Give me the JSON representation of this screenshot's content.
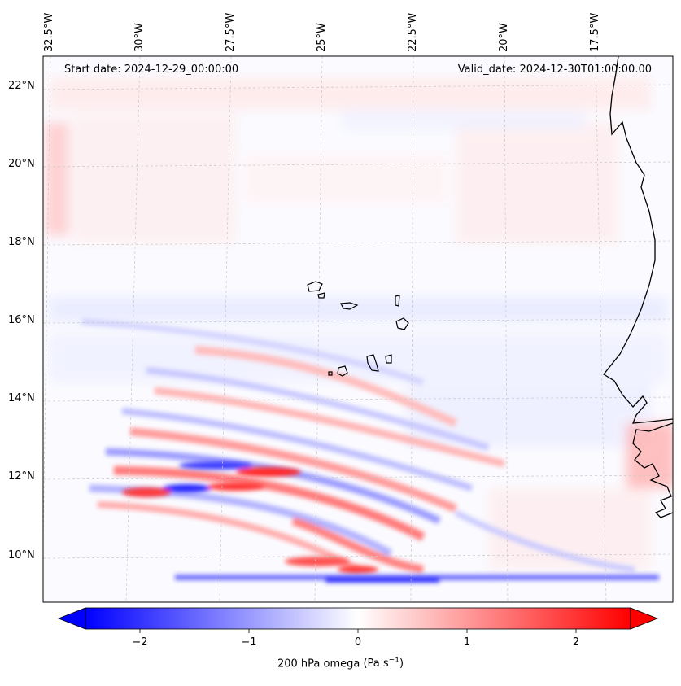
{
  "map": {
    "start_date": "Start date: 2024-12-29_00:00:00",
    "valid_date": "Valid_date: 2024-12-30T01:00:00.00",
    "lat_labels": [
      "22°N",
      "20°N",
      "18°N",
      "16°N",
      "14°N",
      "12°N",
      "10°N"
    ],
    "lon_labels": [
      "32.5°W",
      "30°W",
      "27.5°W",
      "25°W",
      "22.5°W",
      "20°W",
      "17.5°W"
    ],
    "variable": "200 hPa omega",
    "units_prefix": "(Pa s",
    "units_exp": "−1",
    "units_suffix": ")",
    "lat_range": [
      8.8,
      22.8
    ],
    "lon_range": [
      -33.1,
      -15.5
    ]
  },
  "colorbar": {
    "ticks": [
      -2,
      -1,
      0,
      1,
      2
    ],
    "tick_labels": [
      "−2",
      "−1",
      "0",
      "1",
      "2"
    ],
    "range": [
      -2.5,
      2.5
    ],
    "extend": "both",
    "cmap": "bwr",
    "low_color": "#0000ff",
    "mid_color": "#ffffff",
    "high_color": "#ff0000"
  },
  "features": {
    "islands": [
      "Santo Antão",
      "São Vicente",
      "São Nicolau",
      "Sal",
      "Boa Vista",
      "Maio",
      "Santiago",
      "Fogo",
      "Brava"
    ],
    "coastline": "West Africa (Western Sahara, Mauritania, Senegal, Gambia, Guinea-Bissau)"
  }
}
